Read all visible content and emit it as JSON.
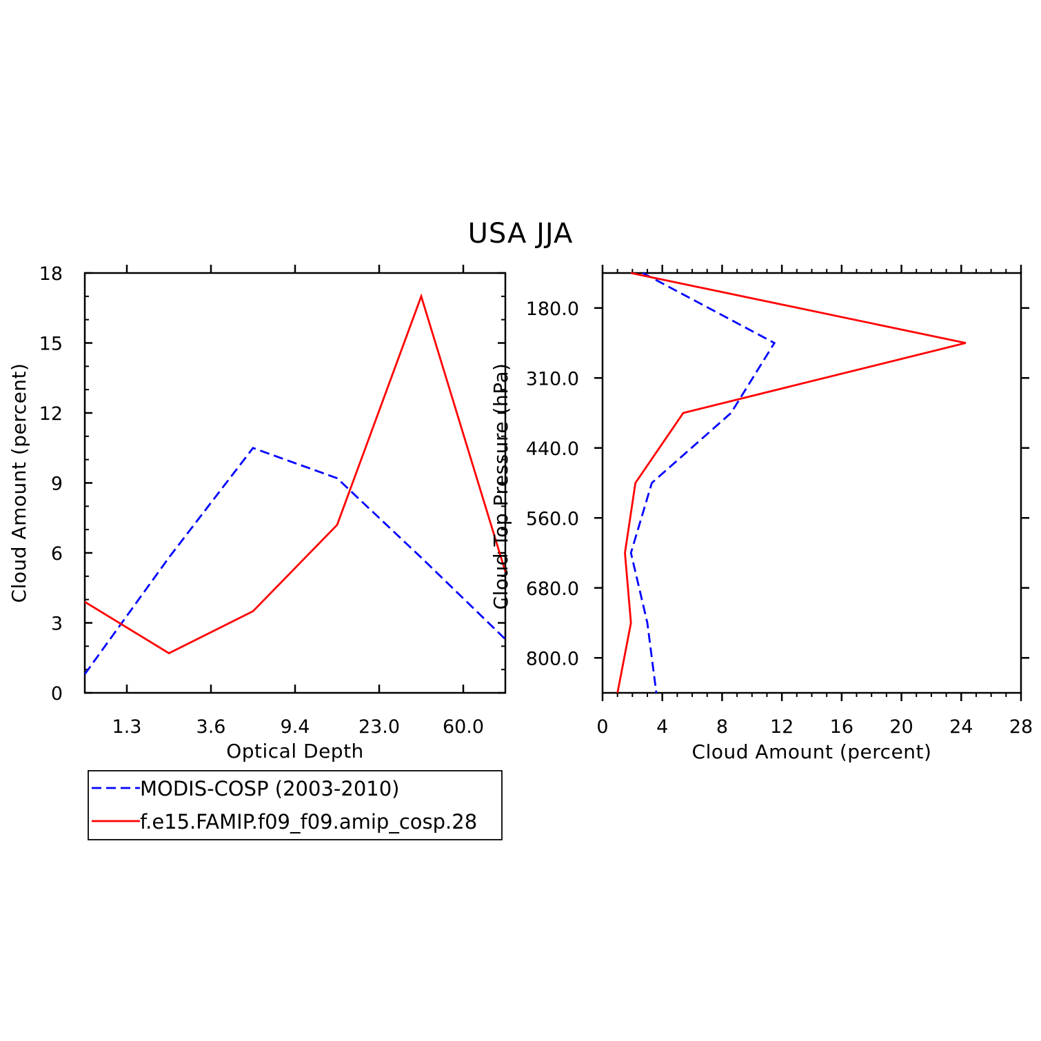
{
  "title": "USA JJA",
  "colors": {
    "obs": "#0000ff",
    "model": "#ff0000",
    "axis": "#000000"
  },
  "legend": {
    "entries": [
      {
        "label": "MODIS-COSP (2003-2010)",
        "color": "#0000ff",
        "dash": true
      },
      {
        "label": "f.e15.FAMIP.f09_f09.amip_cosp.28",
        "color": "#ff0000",
        "dash": false
      }
    ]
  },
  "chart_data": [
    {
      "type": "line",
      "title": "",
      "xlabel": "Optical Depth",
      "ylabel": "Cloud Amount (percent)",
      "x_index": [
        0,
        1,
        2,
        3,
        4,
        5
      ],
      "xtick_labels": [
        "1.3",
        "3.6",
        "9.4",
        "23.0",
        "60.0"
      ],
      "xtick_index": [
        0.5,
        1.5,
        2.5,
        3.5,
        4.5
      ],
      "xlim_index": [
        0,
        5
      ],
      "ylim": [
        0,
        18
      ],
      "yticks": [
        0,
        3,
        6,
        9,
        12,
        15,
        18
      ],
      "grid": false,
      "series": [
        {
          "name": "MODIS-COSP (2003-2010)",
          "color": "#0000ff",
          "dash": true,
          "values": [
            0.8,
            5.8,
            10.5,
            9.2,
            5.8,
            2.3
          ]
        },
        {
          "name": "f.e15.FAMIP.f09_f09.amip_cosp.28",
          "color": "#ff0000",
          "dash": false,
          "values": [
            3.9,
            1.7,
            3.5,
            7.2,
            17.0,
            5.2
          ]
        }
      ]
    },
    {
      "type": "line",
      "title": "",
      "xlabel": "Cloud Amount (percent)",
      "ylabel": "Cloud Top Pressure (hPa)",
      "xlim": [
        0,
        28
      ],
      "xticks": [
        0,
        4,
        8,
        12,
        16,
        20,
        24,
        28
      ],
      "y_index": [
        0,
        1,
        2,
        3,
        4,
        5,
        6
      ],
      "ytick_labels": [
        "180.0",
        "310.0",
        "440.0",
        "560.0",
        "680.0",
        "800.0"
      ],
      "ytick_index": [
        0.5,
        1.5,
        2.5,
        3.5,
        4.5,
        5.5
      ],
      "ylim_index": [
        0,
        6
      ],
      "grid": false,
      "series": [
        {
          "name": "MODIS-COSP (2003-2010)",
          "color": "#0000ff",
          "dash": true,
          "values": [
            2.7,
            11.5,
            8.6,
            3.3,
            1.9,
            3.0,
            3.6
          ]
        },
        {
          "name": "f.e15.FAMIP.f09_f09.amip_cosp.28",
          "color": "#ff0000",
          "dash": false,
          "values": [
            1.9,
            24.3,
            5.4,
            2.2,
            1.5,
            1.9,
            1.0
          ]
        }
      ]
    }
  ]
}
